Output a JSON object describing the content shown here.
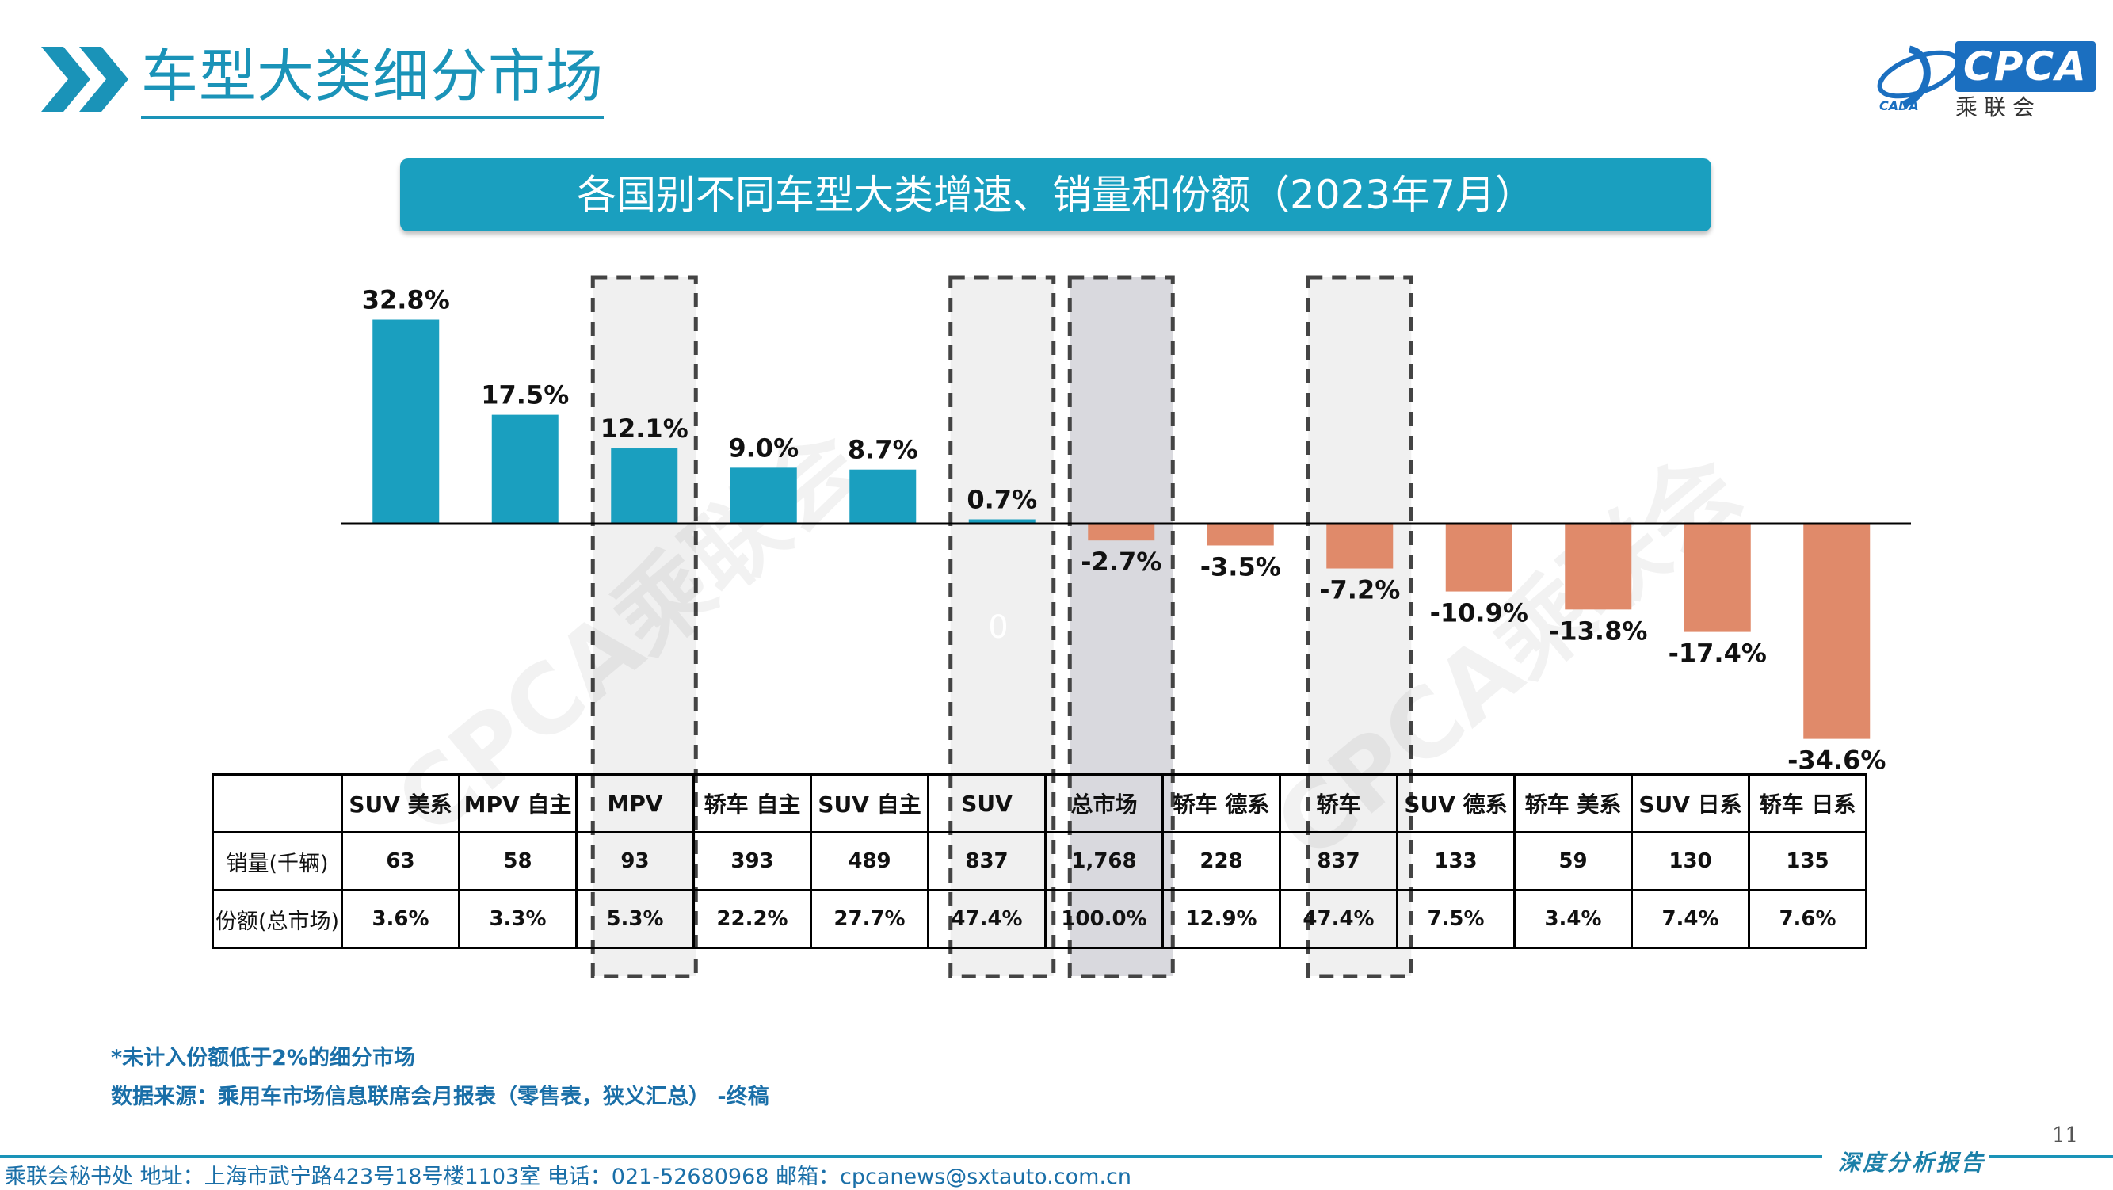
{
  "header": {
    "title": "车型大类细分市场"
  },
  "logo": {
    "text": "CPCA",
    "sub": "乘联会",
    "small": "CADA"
  },
  "banner": {
    "title": "各国别不同车型大类增速、销量和份额（2023年7月）"
  },
  "watermark": {
    "text": "CPCA乘联会",
    "stray_label": "0"
  },
  "colors": {
    "positive": "#1a9fbf",
    "negative": "#e08a6a",
    "highlight": "#f0f0f0",
    "highlight_total": "#d9d9de",
    "accent": "#1a93b8"
  },
  "chart_data": {
    "type": "bar",
    "categories": [
      "SUV 美系",
      "MPV 自主",
      "MPV",
      "轿车 自主",
      "SUV 自主",
      "SUV",
      "总市场",
      "轿车 德系",
      "轿车",
      "SUV 德系",
      "轿车 美系",
      "SUV 日系",
      "轿车 日系"
    ],
    "series": [
      {
        "values": [
          32.8,
          17.5,
          12.1,
          9.0,
          8.7,
          0.7,
          -2.7,
          -3.5,
          -7.2,
          -10.9,
          -13.8,
          -17.4,
          -34.6
        ]
      }
    ],
    "value_labels": [
      "32.8%",
      "17.5%",
      "12.1%",
      "9.0%",
      "8.7%",
      "0.7%",
      "-2.7%",
      "-3.5%",
      "-7.2%",
      "-10.9%",
      "-13.8%",
      "-17.4%",
      "-34.6%"
    ],
    "highlighted": [
      "MPV",
      "SUV",
      "总市场",
      "轿车"
    ],
    "ylim": [
      -35,
      33
    ]
  },
  "table": {
    "rows": [
      {
        "label": "销量(千辆)",
        "values": [
          "63",
          "58",
          "93",
          "393",
          "489",
          "837",
          "1,768",
          "228",
          "837",
          "133",
          "59",
          "130",
          "135"
        ]
      },
      {
        "label": "份额(总市场)",
        "values": [
          "3.6%",
          "3.3%",
          "5.3%",
          "22.2%",
          "27.7%",
          "47.4%",
          "100.0%",
          "12.9%",
          "47.4%",
          "7.5%",
          "3.4%",
          "7.4%",
          "7.6%"
        ]
      }
    ]
  },
  "notes": {
    "footnote": "*未计入份额低于2%的细分市场",
    "source": "数据来源：乘用车市场信息联席会月报表（零售表，狭义汇总） -终稿"
  },
  "footer": {
    "page": "11",
    "report_label": "深度分析报告",
    "contact": "乘联会秘书处   地址：上海市武宁路423号18号楼1103室  电话：021-52680968   邮箱：cpcanews@sxtauto.com.cn"
  }
}
